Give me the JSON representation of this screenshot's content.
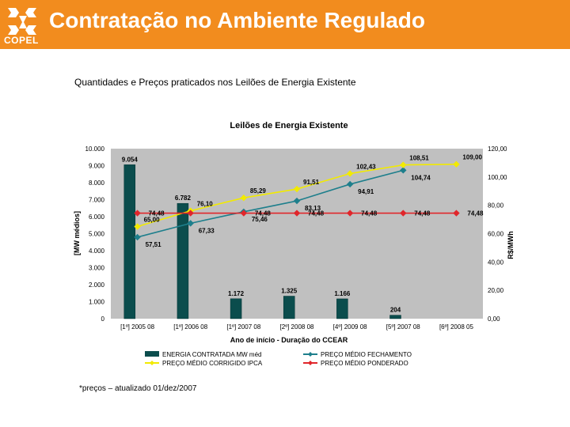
{
  "header": {
    "title": "Contratação no Ambiente Regulado",
    "logo_text": "COPEL",
    "color": "#f28c1e"
  },
  "subtitle": "Quantidades e Preços praticados nos Leilões de Energia Existente",
  "footnote": "*preços – atualizado 01/dez/2007",
  "chart_data": {
    "type": "bar",
    "title": "Leilões de Energia Existente",
    "xlabel": "Ano de início - Duração do CCEAR",
    "ylabel": "[MW médios]",
    "y2label": "R$/MWh",
    "categories": [
      "[1º] 2005 08",
      "[1º] 2006 08",
      "[1º] 2007 08",
      "[2º] 2008 08",
      "[4º] 2009 08",
      "[5º] 2007 08",
      "[6º] 2008 05"
    ],
    "ylim": [
      0,
      10000
    ],
    "y2lim": [
      0,
      120
    ],
    "yticks": [
      "10.000",
      "9.000",
      "8.000",
      "7.000",
      "6.000",
      "5.000",
      "4.000",
      "3.000",
      "2.000",
      "1.000",
      "0"
    ],
    "y2ticks": [
      "120,00",
      "100,00",
      "80,00",
      "60,00",
      "40,00",
      "20,00",
      "0,00"
    ],
    "grid": false,
    "legend_position": "bottom",
    "series": [
      {
        "name": "ENERGIA CONTRATADA MW méd",
        "kind": "bar",
        "color": "#0b4d4d",
        "values": [
          9054,
          6782,
          1172,
          1325,
          1166,
          204,
          null
        ],
        "labels": [
          "9.054",
          "6.782",
          "1.172",
          "1.325",
          "1.166",
          "204",
          ""
        ]
      },
      {
        "name": "PREÇO MÉDIO FECHAMENTO",
        "kind": "line",
        "axis": "right",
        "color": "#1e7f8c",
        "values": [
          57.51,
          67.33,
          75.46,
          83.13,
          94.91,
          104.74,
          null
        ],
        "labels": [
          "57,51",
          "67,33",
          "75,46",
          "83,13",
          "94,91",
          "104,74",
          ""
        ]
      },
      {
        "name": "PREÇO MÉDIO CORRIGIDO IPCA",
        "kind": "line",
        "axis": "right",
        "color": "#f2ea00",
        "values": [
          65.0,
          76.1,
          85.29,
          91.51,
          102.43,
          108.51,
          109.0
        ],
        "labels": [
          "65,00",
          "76,10",
          "85,29",
          "91,51",
          "102,43",
          "108,51",
          "109,00"
        ]
      },
      {
        "name": "PREÇO MÉDIO PONDERADO",
        "kind": "line",
        "axis": "right",
        "color": "#e0262b",
        "values": [
          74.48,
          74.48,
          74.48,
          74.48,
          74.48,
          74.48,
          74.48
        ],
        "labels": [
          "74,48",
          "",
          "74,48",
          "74,48",
          "74,48",
          "74,48",
          "74,48"
        ]
      }
    ]
  }
}
